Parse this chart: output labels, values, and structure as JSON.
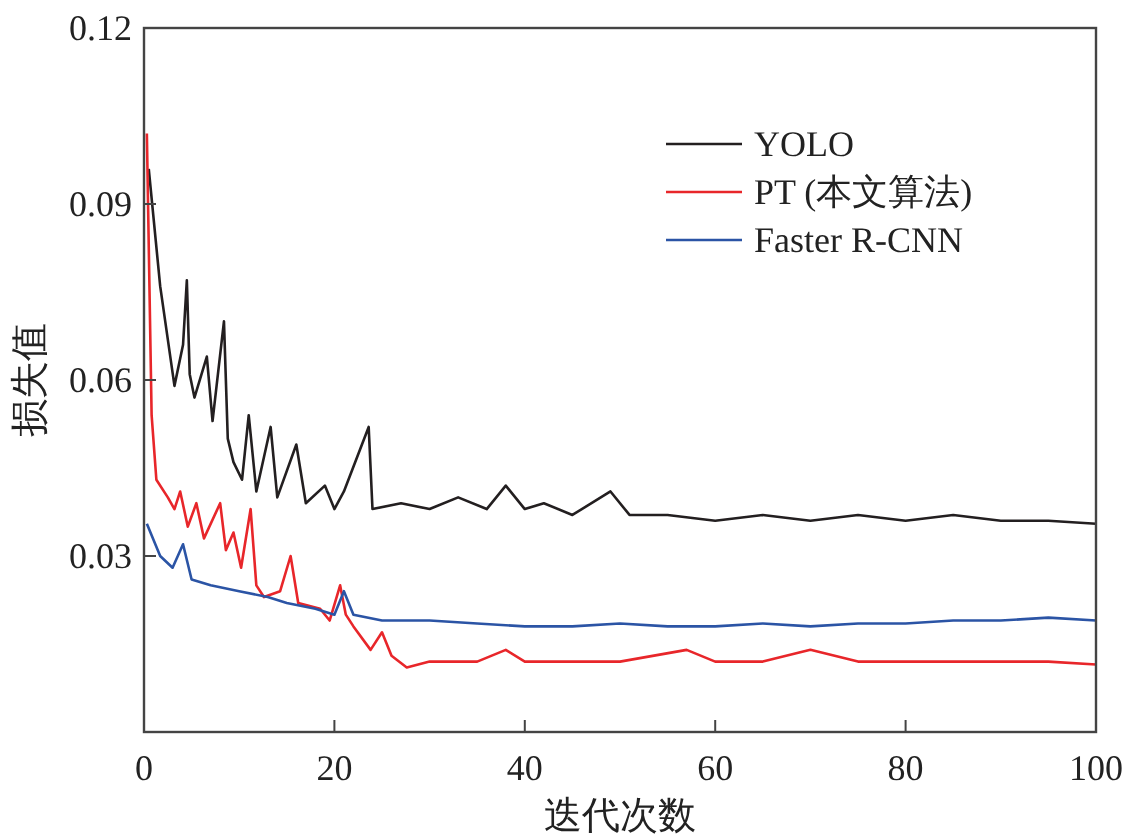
{
  "chart_data": {
    "type": "line",
    "xlabel": "迭代次数",
    "ylabel": "损失值",
    "xlim": [
      0,
      100
    ],
    "ylim": [
      0,
      0.12
    ],
    "xticks": [
      0,
      20,
      40,
      60,
      80,
      100
    ],
    "yticks": [
      0.03,
      0.06,
      0.09,
      0.12
    ],
    "grid": false,
    "legend": "top right",
    "line_style": "solid",
    "series": [
      {
        "name": "YOLO",
        "color": "#231f20",
        "x": [
          0.5,
          1.7,
          3.2,
          4.1,
          4.5,
          4.8,
          5.3,
          6.6,
          7.2,
          8.4,
          8.8,
          9.4,
          10.3,
          11,
          11.8,
          13.3,
          14,
          16,
          17,
          19,
          20,
          21,
          23.6,
          24,
          27,
          30,
          33,
          36,
          38,
          40,
          42,
          45,
          49,
          51,
          55,
          60,
          65,
          70,
          75,
          80,
          85,
          90,
          95,
          100
        ],
        "values": [
          0.096,
          0.076,
          0.059,
          0.066,
          0.077,
          0.061,
          0.057,
          0.064,
          0.053,
          0.07,
          0.05,
          0.046,
          0.043,
          0.054,
          0.041,
          0.052,
          0.04,
          0.049,
          0.039,
          0.042,
          0.038,
          0.041,
          0.052,
          0.038,
          0.039,
          0.038,
          0.04,
          0.038,
          0.042,
          0.038,
          0.039,
          0.037,
          0.041,
          0.037,
          0.037,
          0.036,
          0.037,
          0.036,
          0.037,
          0.036,
          0.037,
          0.036,
          0.036,
          0.0355
        ]
      },
      {
        "name": "PT (本文算法)",
        "color": "#e8262a",
        "x": [
          0.3,
          0.8,
          1.3,
          2.5,
          3.2,
          3.8,
          4.6,
          5.5,
          6.3,
          8,
          8.6,
          9.4,
          10.2,
          11.2,
          11.8,
          12.6,
          14.3,
          15.4,
          16.2,
          18.5,
          19.5,
          20.6,
          21.2,
          22,
          23.8,
          25,
          26,
          27.6,
          30,
          35,
          38,
          40,
          45,
          50,
          57,
          60,
          65,
          70,
          75,
          80,
          85,
          90,
          95,
          100
        ],
        "values": [
          0.102,
          0.054,
          0.043,
          0.04,
          0.038,
          0.041,
          0.035,
          0.039,
          0.033,
          0.039,
          0.031,
          0.034,
          0.028,
          0.038,
          0.025,
          0.023,
          0.024,
          0.03,
          0.022,
          0.021,
          0.019,
          0.025,
          0.02,
          0.018,
          0.014,
          0.017,
          0.013,
          0.011,
          0.012,
          0.012,
          0.014,
          0.012,
          0.012,
          0.012,
          0.014,
          0.012,
          0.012,
          0.014,
          0.012,
          0.012,
          0.012,
          0.012,
          0.012,
          0.0115
        ]
      },
      {
        "name": "Faster R-CNN",
        "color": "#2b54a5",
        "x": [
          0.3,
          1.7,
          3,
          4.1,
          5,
          7,
          10,
          13,
          15,
          18,
          20,
          21,
          22,
          25,
          30,
          35,
          40,
          45,
          50,
          55,
          60,
          65,
          70,
          75,
          80,
          85,
          90,
          95,
          100
        ],
        "values": [
          0.0355,
          0.03,
          0.028,
          0.032,
          0.026,
          0.025,
          0.024,
          0.023,
          0.022,
          0.021,
          0.02,
          0.024,
          0.02,
          0.019,
          0.019,
          0.0185,
          0.018,
          0.018,
          0.0185,
          0.018,
          0.018,
          0.0185,
          0.018,
          0.0185,
          0.0185,
          0.019,
          0.019,
          0.0195,
          0.019
        ]
      }
    ]
  }
}
